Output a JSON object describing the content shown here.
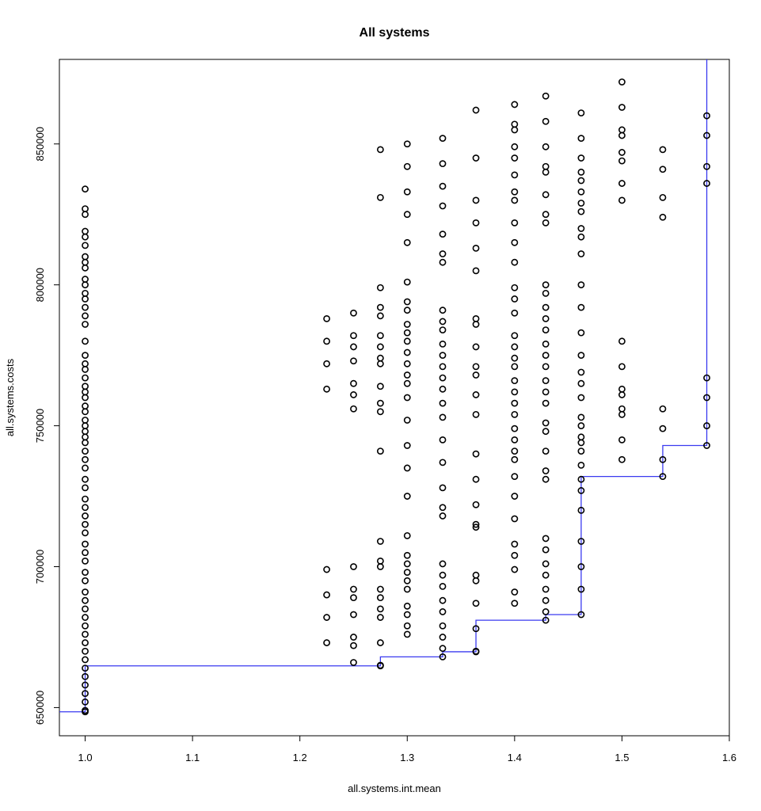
{
  "chart_data": {
    "type": "scatter",
    "title": "All systems",
    "xlabel": "all.systems.int.mean",
    "ylabel": "all.systems.costs",
    "xlim": [
      0.976,
      1.6
    ],
    "ylim": [
      640000,
      880000
    ],
    "x_ticks": [
      1.0,
      1.1,
      1.2,
      1.3,
      1.4,
      1.5,
      1.6
    ],
    "x_tick_labels": [
      "1.0",
      "1.1",
      "1.2",
      "1.3",
      "1.4",
      "1.5",
      "1.6"
    ],
    "y_ticks": [
      650000,
      700000,
      750000,
      800000,
      850000
    ],
    "y_tick_labels": [
      "650000",
      "700000",
      "750000",
      "800000",
      "850000"
    ],
    "grid": false,
    "point_color": "#000000",
    "line_color": "#3a3af0",
    "columns": [
      {
        "x": 1.0,
        "y": [
          834000,
          827000,
          825000,
          819000,
          817000,
          814000,
          810000,
          808000,
          806000,
          802000,
          800000,
          797000,
          795000,
          792000,
          789000,
          786000,
          780000,
          775000,
          772000,
          770000,
          767000,
          764000,
          762000,
          760000,
          757000,
          755000,
          752000,
          750000,
          748000,
          746000,
          744000,
          741000,
          738000,
          735000,
          731000,
          728000,
          724000,
          721000,
          718000,
          715000,
          712000,
          708000,
          705000,
          702000,
          698000,
          695000,
          691000,
          688000,
          685000,
          682000,
          679000,
          676000,
          673000,
          670000,
          667000,
          664000,
          661000,
          658000,
          655000,
          652000,
          649000,
          648500
        ]
      },
      {
        "x": 1.225,
        "y": [
          788000,
          780000,
          772000,
          763000,
          699000,
          690000,
          682000,
          673000
        ]
      },
      {
        "x": 1.25,
        "y": [
          790000,
          782000,
          778000,
          773000,
          765000,
          761000,
          756000,
          700000,
          692000,
          689000,
          683000,
          675000,
          672000,
          666000
        ]
      },
      {
        "x": 1.275,
        "y": [
          848000,
          831000,
          799000,
          792000,
          789000,
          782000,
          778000,
          774000,
          772000,
          764000,
          758000,
          755000,
          741000,
          709000,
          702000,
          700000,
          692000,
          689000,
          685000,
          682000,
          673000,
          665000,
          664800
        ]
      },
      {
        "x": 1.3,
        "y": [
          850000,
          842000,
          833000,
          825000,
          815000,
          801000,
          794000,
          791000,
          786000,
          783000,
          780000,
          776000,
          772000,
          768000,
          765000,
          760000,
          752000,
          743000,
          735000,
          725000,
          711000,
          704000,
          701000,
          698000,
          695000,
          692000,
          686000,
          683000,
          679000,
          676000
        ]
      },
      {
        "x": 1.333,
        "y": [
          852000,
          843000,
          835000,
          828000,
          818000,
          811000,
          808000,
          791000,
          787000,
          784000,
          779000,
          775000,
          771000,
          767000,
          763000,
          758000,
          753000,
          745000,
          737000,
          728000,
          721000,
          718000,
          701000,
          697000,
          693000,
          688000,
          684000,
          679000,
          675000,
          671000,
          668000
        ]
      },
      {
        "x": 1.364,
        "y": [
          862000,
          845000,
          830000,
          822000,
          813000,
          805000,
          788000,
          786000,
          778000,
          771000,
          768000,
          761000,
          754000,
          740000,
          731000,
          722000,
          715000,
          714000,
          697000,
          695000,
          687000,
          678000,
          670000,
          669800
        ]
      },
      {
        "x": 1.4,
        "y": [
          864000,
          857000,
          855000,
          849000,
          845000,
          839000,
          833000,
          830000,
          822000,
          815000,
          808000,
          799000,
          795000,
          790000,
          782000,
          778000,
          774000,
          771000,
          766000,
          762000,
          758000,
          754000,
          749000,
          745000,
          741000,
          738000,
          732000,
          725000,
          717000,
          708000,
          704000,
          699000,
          691000,
          687000
        ]
      },
      {
        "x": 1.429,
        "y": [
          867000,
          858000,
          849000,
          842000,
          840000,
          832000,
          825000,
          822000,
          800000,
          797000,
          792000,
          788000,
          784000,
          779000,
          775000,
          771000,
          766000,
          762000,
          758000,
          751000,
          748000,
          741000,
          734000,
          731000,
          710000,
          706000,
          701000,
          697000,
          692000,
          688000,
          684000,
          681000
        ]
      },
      {
        "x": 1.462,
        "y": [
          861000,
          852000,
          845000,
          840000,
          837000,
          833000,
          829000,
          826000,
          820000,
          817000,
          811000,
          800000,
          792000,
          783000,
          775000,
          769000,
          765000,
          760000,
          753000,
          750000,
          746000,
          744000,
          741000,
          736000,
          731000,
          727000,
          720000,
          709000,
          700000,
          692000,
          683000
        ]
      },
      {
        "x": 1.5,
        "y": [
          872000,
          863000,
          855000,
          853000,
          847000,
          844000,
          836000,
          830000,
          780000,
          771000,
          763000,
          761000,
          756000,
          754000,
          745000,
          738000
        ]
      },
      {
        "x": 1.538,
        "y": [
          848000,
          841000,
          831000,
          824000,
          756000,
          749000,
          738000,
          732000
        ]
      },
      {
        "x": 1.579,
        "y": [
          860000,
          853000,
          842000,
          836000,
          767000,
          760000,
          750000,
          743000
        ]
      }
    ],
    "frontier_line": [
      [
        0.976,
        648500
      ],
      [
        1.0,
        648500
      ],
      [
        1.0,
        664800
      ],
      [
        1.275,
        664800
      ],
      [
        1.275,
        668000
      ],
      [
        1.333,
        668000
      ],
      [
        1.333,
        669800
      ],
      [
        1.364,
        669800
      ],
      [
        1.364,
        681000
      ],
      [
        1.429,
        681000
      ],
      [
        1.429,
        683000
      ],
      [
        1.462,
        683000
      ],
      [
        1.462,
        732000
      ],
      [
        1.538,
        732000
      ],
      [
        1.538,
        743000
      ],
      [
        1.579,
        743000
      ],
      [
        1.579,
        880000
      ]
    ]
  }
}
